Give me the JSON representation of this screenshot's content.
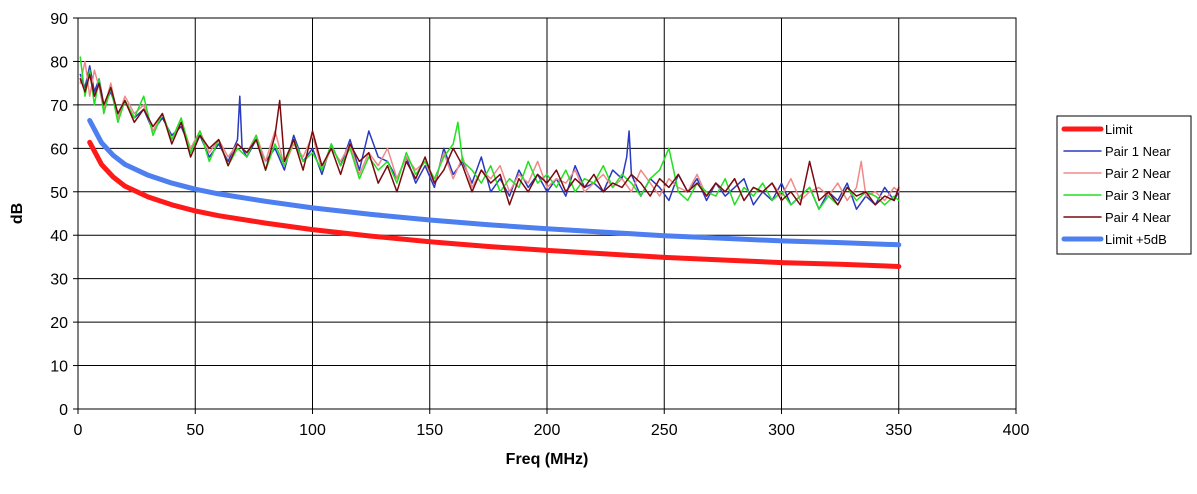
{
  "chart_data": {
    "type": "line",
    "title": "",
    "xlabel": "Freq (MHz)",
    "ylabel": "dB",
    "xlim": [
      0,
      400
    ],
    "ylim": [
      0,
      90
    ],
    "xticks": [
      0,
      50,
      100,
      150,
      200,
      250,
      300,
      350,
      400
    ],
    "yticks": [
      0,
      10,
      20,
      30,
      40,
      50,
      60,
      70,
      80,
      90
    ],
    "grid": true,
    "legend_position": "right",
    "series": [
      {
        "name": "Limit",
        "color": "#ff1a1a",
        "line_width": "thick",
        "x": [
          5,
          10,
          15,
          20,
          30,
          40,
          50,
          60,
          80,
          100,
          125,
          150,
          175,
          200,
          225,
          250,
          275,
          300,
          325,
          350
        ],
        "y": [
          61.4,
          56.3,
          53.4,
          51.3,
          48.8,
          47.0,
          45.6,
          44.5,
          42.8,
          41.3,
          39.8,
          38.5,
          37.4,
          36.5,
          35.7,
          34.9,
          34.3,
          33.7,
          33.3,
          32.8
        ]
      },
      {
        "name": "Pair 1 Near",
        "color": "#2a3ac0",
        "line_width": "thin",
        "x": [
          1,
          3,
          5,
          7,
          9,
          11,
          14,
          17,
          20,
          24,
          28,
          32,
          36,
          40,
          44,
          48,
          52,
          56,
          60,
          64,
          68,
          69,
          70,
          72,
          76,
          80,
          84,
          88,
          92,
          96,
          100,
          104,
          108,
          112,
          116,
          120,
          124,
          128,
          132,
          136,
          140,
          144,
          148,
          152,
          156,
          160,
          164,
          168,
          172,
          176,
          180,
          184,
          188,
          192,
          196,
          200,
          204,
          208,
          212,
          216,
          220,
          224,
          228,
          232,
          234,
          235,
          236,
          240,
          244,
          248,
          252,
          256,
          260,
          264,
          268,
          272,
          276,
          280,
          284,
          288,
          292,
          296,
          300,
          304,
          308,
          312,
          316,
          320,
          324,
          328,
          332,
          336,
          340,
          344,
          348,
          350
        ],
        "y": [
          77,
          74,
          79,
          73,
          76,
          70,
          73,
          68,
          71,
          67,
          69,
          64,
          67,
          63,
          65,
          60,
          63,
          58,
          61,
          57,
          62,
          72,
          60,
          58,
          62,
          57,
          60,
          55,
          63,
          57,
          60,
          54,
          61,
          56,
          62,
          55,
          64,
          58,
          57,
          53,
          58,
          52,
          56,
          51,
          60,
          54,
          57,
          52,
          58,
          50,
          53,
          49,
          55,
          51,
          54,
          50,
          53,
          49,
          56,
          51,
          52,
          50,
          55,
          53,
          58,
          64,
          54,
          49,
          53,
          51,
          48,
          54,
          50,
          53,
          48,
          52,
          49,
          51,
          53,
          47,
          50,
          48,
          52,
          47,
          49,
          51,
          46,
          50,
          48,
          52,
          46,
          49,
          47,
          51,
          48,
          50
        ]
      },
      {
        "name": "Pair 2 Near",
        "color": "#f08a8a",
        "line_width": "thin",
        "x": [
          1,
          3,
          5,
          7,
          9,
          11,
          14,
          17,
          20,
          24,
          28,
          32,
          36,
          40,
          44,
          48,
          52,
          56,
          60,
          64,
          68,
          72,
          76,
          80,
          84,
          88,
          92,
          96,
          100,
          104,
          108,
          112,
          116,
          120,
          124,
          128,
          132,
          136,
          140,
          144,
          148,
          152,
          156,
          160,
          164,
          168,
          172,
          176,
          180,
          184,
          188,
          192,
          196,
          200,
          204,
          208,
          212,
          216,
          220,
          224,
          228,
          232,
          236,
          240,
          244,
          248,
          252,
          256,
          260,
          264,
          268,
          272,
          276,
          280,
          284,
          288,
          292,
          296,
          300,
          304,
          308,
          312,
          316,
          320,
          324,
          328,
          332,
          334,
          336,
          340,
          344,
          348,
          350
        ],
        "y": [
          75,
          80,
          72,
          78,
          74,
          69,
          75,
          67,
          72,
          68,
          70,
          64,
          68,
          62,
          66,
          60,
          64,
          59,
          62,
          58,
          61,
          59,
          63,
          57,
          64,
          56,
          61,
          58,
          63,
          55,
          60,
          57,
          61,
          54,
          59,
          56,
          60,
          53,
          58,
          55,
          57,
          52,
          59,
          53,
          58,
          51,
          55,
          53,
          56,
          50,
          54,
          52,
          57,
          51,
          53,
          52,
          55,
          50,
          52,
          54,
          51,
          53,
          50,
          55,
          52,
          49,
          53,
          51,
          50,
          54,
          49,
          52,
          50,
          53,
          48,
          51,
          50,
          52,
          49,
          53,
          48,
          50,
          51,
          49,
          52,
          48,
          51,
          57,
          49,
          50,
          48,
          51,
          50
        ]
      },
      {
        "name": "Pair 3 Near",
        "color": "#22e022",
        "line_width": "thin",
        "x": [
          1,
          3,
          5,
          7,
          9,
          11,
          14,
          17,
          20,
          24,
          28,
          32,
          36,
          40,
          44,
          48,
          52,
          56,
          60,
          64,
          68,
          72,
          76,
          80,
          84,
          88,
          92,
          96,
          100,
          104,
          108,
          112,
          116,
          120,
          124,
          128,
          132,
          136,
          140,
          144,
          148,
          152,
          156,
          160,
          162,
          164,
          168,
          172,
          176,
          180,
          184,
          188,
          192,
          196,
          200,
          204,
          208,
          212,
          216,
          220,
          224,
          228,
          232,
          236,
          240,
          244,
          248,
          252,
          256,
          260,
          264,
          268,
          272,
          276,
          280,
          284,
          288,
          292,
          296,
          300,
          304,
          308,
          312,
          316,
          320,
          324,
          328,
          332,
          336,
          340,
          344,
          348,
          350
        ],
        "y": [
          81,
          72,
          78,
          70,
          76,
          68,
          74,
          66,
          71,
          67,
          72,
          63,
          68,
          62,
          67,
          59,
          64,
          57,
          62,
          56,
          60,
          58,
          63,
          55,
          61,
          56,
          62,
          57,
          59,
          55,
          61,
          56,
          60,
          53,
          58,
          55,
          57,
          52,
          59,
          54,
          57,
          53,
          58,
          61,
          66,
          57,
          55,
          52,
          56,
          50,
          53,
          51,
          57,
          52,
          54,
          51,
          55,
          50,
          53,
          52,
          56,
          51,
          54,
          52,
          49,
          53,
          55,
          60,
          50,
          48,
          52,
          50,
          49,
          53,
          47,
          51,
          49,
          52,
          48,
          50,
          47,
          49,
          51,
          46,
          49,
          47,
          51,
          48,
          50,
          49,
          47,
          49,
          48
        ]
      },
      {
        "name": "Pair 4 Near",
        "color": "#7a0a10",
        "line_width": "thin",
        "x": [
          1,
          3,
          5,
          7,
          9,
          11,
          14,
          17,
          20,
          24,
          28,
          32,
          36,
          40,
          44,
          48,
          52,
          56,
          60,
          64,
          68,
          72,
          76,
          80,
          84,
          86,
          88,
          92,
          96,
          100,
          104,
          108,
          112,
          116,
          120,
          124,
          128,
          132,
          136,
          140,
          144,
          148,
          152,
          156,
          160,
          164,
          168,
          172,
          176,
          180,
          184,
          188,
          192,
          196,
          200,
          204,
          208,
          212,
          216,
          220,
          224,
          228,
          232,
          236,
          240,
          244,
          248,
          252,
          256,
          260,
          264,
          268,
          272,
          276,
          280,
          284,
          288,
          292,
          296,
          300,
          304,
          308,
          312,
          316,
          320,
          324,
          328,
          332,
          336,
          340,
          344,
          348,
          350
        ],
        "y": [
          76,
          73,
          77,
          72,
          75,
          70,
          74,
          68,
          71,
          66,
          69,
          65,
          68,
          61,
          66,
          58,
          63,
          60,
          62,
          56,
          61,
          59,
          62,
          55,
          63,
          71,
          57,
          62,
          55,
          64,
          56,
          60,
          54,
          61,
          57,
          59,
          52,
          56,
          50,
          57,
          53,
          58,
          52,
          55,
          60,
          56,
          50,
          55,
          52,
          54,
          47,
          53,
          50,
          54,
          52,
          55,
          50,
          53,
          51,
          54,
          50,
          52,
          51,
          54,
          52,
          49,
          53,
          51,
          54,
          50,
          52,
          49,
          52,
          50,
          53,
          48,
          51,
          50,
          52,
          48,
          50,
          47,
          57,
          48,
          50,
          47,
          51,
          49,
          50,
          47,
          49,
          48,
          51
        ]
      },
      {
        "name": "Limit +5dB",
        "color": "#4d7ff0",
        "line_width": "thick",
        "x": [
          5,
          10,
          15,
          20,
          30,
          40,
          50,
          60,
          80,
          100,
          125,
          150,
          175,
          200,
          225,
          250,
          275,
          300,
          325,
          350
        ],
        "y": [
          66.4,
          61.3,
          58.4,
          56.3,
          53.8,
          52.0,
          50.6,
          49.5,
          47.8,
          46.3,
          44.8,
          43.5,
          42.4,
          41.5,
          40.7,
          39.9,
          39.3,
          38.7,
          38.3,
          37.8
        ]
      }
    ]
  }
}
